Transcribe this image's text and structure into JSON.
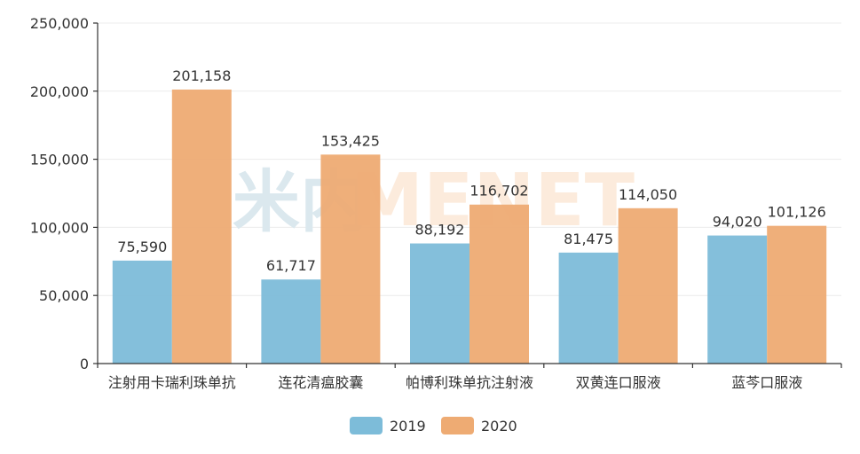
{
  "watermark": {
    "cn_text": "米内",
    "en_text": "MENET",
    "cn_color": "#dbe8ee",
    "en_color": "#fcebdc"
  },
  "chart_data": {
    "type": "bar",
    "title": "",
    "xlabel": "",
    "ylabel": "",
    "categories": [
      "注射用卡瑞利珠单抗",
      "连花清瘟胶囊",
      "帕博利珠单抗注射液",
      "双黄连口服液",
      "蓝芩口服液"
    ],
    "series": [
      {
        "name": "2019",
        "color": "#7dbcd9",
        "values": [
          75590,
          61717,
          88192,
          81475,
          94020
        ]
      },
      {
        "name": "2020",
        "color": "#eeab73",
        "values": [
          201158,
          153425,
          116702,
          114050,
          101126
        ]
      }
    ],
    "data_labels": {
      "2019": [
        "75,590",
        "61,717",
        "88,192",
        "81,475",
        "94,020"
      ],
      "2020": [
        "201,158",
        "153,425",
        "116,702",
        "114,050",
        "101,126"
      ]
    },
    "ylim": [
      0,
      250000
    ],
    "yticks": [
      0,
      50000,
      100000,
      150000,
      200000,
      250000
    ],
    "ytick_labels": [
      "0",
      "50,000",
      "100,000",
      "150,000",
      "200,000",
      "250,000"
    ],
    "grid": true,
    "legend_position": "bottom"
  },
  "legend": {
    "items": [
      {
        "label": "2019",
        "color": "#7dbcd9"
      },
      {
        "label": "2020",
        "color": "#eeab73"
      }
    ]
  }
}
